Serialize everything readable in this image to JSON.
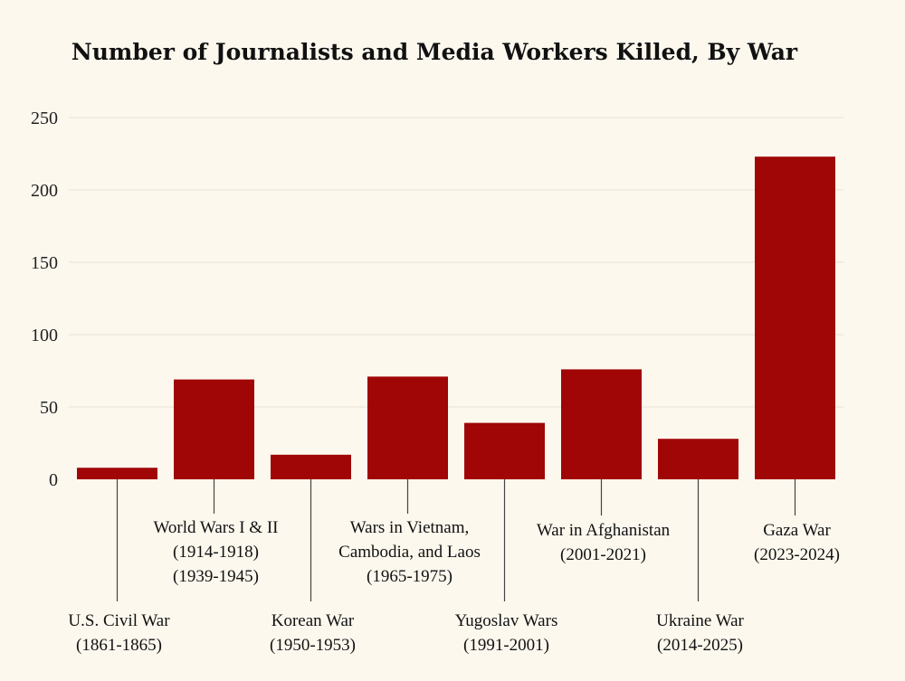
{
  "chart_data": {
    "type": "bar",
    "title": "Number of Journalists and Media Workers Killed, By War",
    "xlabel": "",
    "ylabel": "",
    "ylim": [
      0,
      250
    ],
    "yticks": [
      "0",
      "50",
      "100",
      "150",
      "200",
      "250"
    ],
    "grid": true,
    "legend": "none",
    "bar_color": "#a00606",
    "categories": [
      [
        "U.S. Civil War",
        "(1861-1865)"
      ],
      [
        "World Wars I & II",
        "(1914-1918)",
        "(1939-1945)"
      ],
      [
        "Korean War",
        "(1950-1953)"
      ],
      [
        "Wars in Vietnam,",
        "Cambodia, and Laos",
        "(1965-1975)"
      ],
      [
        "Yugoslav Wars",
        "(1991-2001)"
      ],
      [
        "War in Afghanistan",
        "(2001-2021)"
      ],
      [
        "Ukraine War",
        "(2014-2025)"
      ],
      [
        "Gaza War",
        "(2023-2024)"
      ]
    ],
    "values": [
      8,
      69,
      17,
      71,
      39,
      76,
      28,
      223
    ]
  }
}
